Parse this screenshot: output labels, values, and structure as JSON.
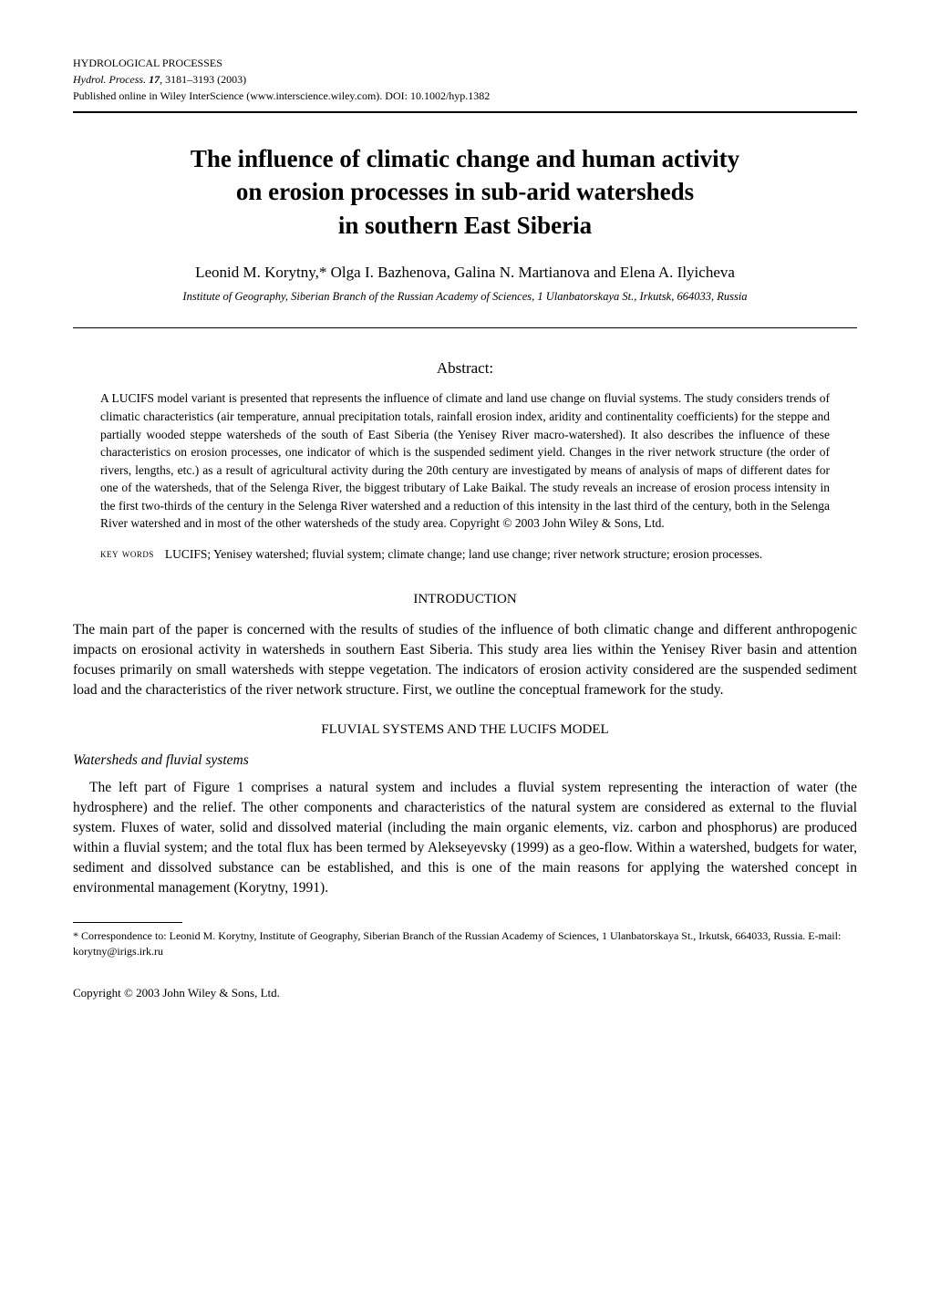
{
  "header": {
    "line1": "HYDROLOGICAL PROCESSES",
    "line2_prefix": "Hydrol. Process.",
    "line2_vol": " 17",
    "line2_rest": ", 3181–3193 (2003)",
    "line3": "Published online in Wiley InterScience (www.interscience.wiley.com). DOI: 10.1002/hyp.1382"
  },
  "title": {
    "l1": "The influence of climatic change and human activity",
    "l2": "on erosion processes in sub-arid watersheds",
    "l3": "in southern East Siberia"
  },
  "authors": "Leonid M. Korytny,* Olga I. Bazhenova, Galina N. Martianova and Elena A. Ilyicheva",
  "affiliation": "Institute of Geography, Siberian Branch of the Russian Academy of Sciences, 1 Ulanbatorskaya St., Irkutsk, 664033, Russia",
  "abstract": {
    "heading": "Abstract:",
    "text": "A LUCIFS model variant is presented that represents the influence of climate and land use change on fluvial systems. The study considers trends of climatic characteristics (air temperature, annual precipitation totals, rainfall erosion index, aridity and continentality coefficients) for the steppe and partially wooded steppe watersheds of the south of East Siberia (the Yenisey River macro-watershed). It also describes the influence of these characteristics on erosion processes, one indicator of which is the suspended sediment yield. Changes in the river network structure (the order of rivers, lengths, etc.) as a result of agricultural activity during the 20th century are investigated by means of analysis of maps of different dates for one of the watersheds, that of the Selenga River, the biggest tributary of Lake Baikal. The study reveals an increase of erosion process intensity in the first two-thirds of the century in the Selenga River watershed and a reduction of this intensity in the last third of the century, both in the Selenga River watershed and in most of the other watersheds of the study area. Copyright © 2003 John Wiley & Sons, Ltd."
  },
  "keywords": {
    "label": "key words",
    "text": "LUCIFS; Yenisey watershed; fluvial system; climate change; land use change; river network structure; erosion processes."
  },
  "sections": {
    "intro": {
      "heading": "INTRODUCTION",
      "para": "The main part of the paper is concerned with the results of studies of the influence of both climatic change and different anthropogenic impacts on erosional activity in watersheds in southern East Siberia. This study area lies within the Yenisey River basin and attention focuses primarily on small watersheds with steppe vegetation. The indicators of erosion activity considered are the suspended sediment load and the characteristics of the river network structure. First, we outline the conceptual framework for the study."
    },
    "fluvial": {
      "heading": "FLUVIAL SYSTEMS AND THE LUCIFS MODEL",
      "subheading": "Watersheds and fluvial systems",
      "para": "The left part of Figure 1 comprises a natural system and includes a fluvial system representing the interaction of water (the hydrosphere) and the relief. The other components and characteristics of the natural system are considered as external to the fluvial system. Fluxes of water, solid and dissolved material (including the main organic elements, viz. carbon and phosphorus) are produced within a fluvial system; and the total flux has been termed by Alekseyevsky (1999) as a geo-flow. Within a watershed, budgets for water, sediment and dissolved substance can be established, and this is one of the main reasons for applying the watershed concept in environmental management (Korytny, 1991)."
    }
  },
  "footnote": "* Correspondence to: Leonid M. Korytny, Institute of Geography, Siberian Branch of the Russian Academy of Sciences, 1 Ulanbatorskaya St., Irkutsk, 664033, Russia. E-mail: korytny@irigs.irk.ru",
  "copyright": "Copyright © 2003 John Wiley & Sons, Ltd."
}
